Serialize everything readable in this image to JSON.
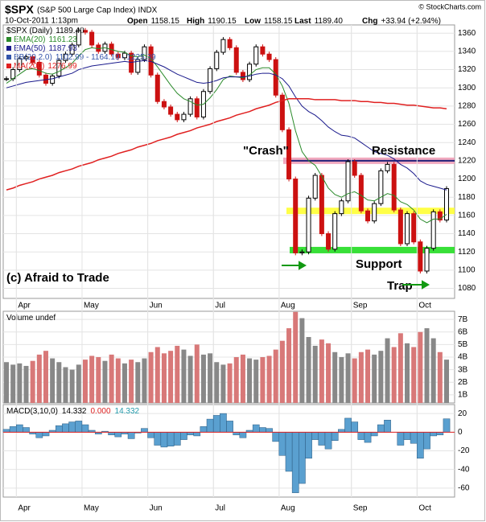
{
  "chart_data": [
    {
      "type": "candlestick",
      "title": "$SPX",
      "subtitle": "(S&P 500 Large Cap Index) INDX",
      "date": "10-Oct-2011 1:13pm",
      "source": "© StockCharts.com",
      "quote": [
        {
          "label": "Open",
          "value": "1158.15"
        },
        {
          "label": "High",
          "value": "1190.15"
        },
        {
          "label": "Low",
          "value": "1158.15"
        },
        {
          "label": "Last",
          "value": "1189.40"
        },
        {
          "label": "Chg",
          "value": "+33.94 (+2.94%)"
        }
      ],
      "annotations": {
        "crash": "\"Crash\"",
        "resistance": "Resistance",
        "support": "Support",
        "trap": "Trap",
        "copyright": "(c) Afraid to Trade"
      },
      "categories": [
        null,
        null,
        "Apr",
        null,
        null,
        null,
        null,
        null,
        null,
        null,
        null,
        null,
        "May",
        null,
        null,
        null,
        null,
        null,
        null,
        null,
        null,
        null,
        "Jun",
        null,
        null,
        null,
        null,
        null,
        null,
        null,
        null,
        null,
        "Jul",
        null,
        null,
        null,
        null,
        null,
        null,
        null,
        null,
        null,
        "Aug",
        null,
        null,
        null,
        null,
        null,
        null,
        null,
        null,
        null,
        null,
        "Sep",
        null,
        null,
        null,
        null,
        null,
        null,
        null,
        null,
        null,
        "Oct",
        null,
        null,
        null,
        null
      ],
      "series": [
        {
          "name": "$SPX (Daily)",
          "last": "1189.40",
          "color": "#000000",
          "down_color": "#cc1111",
          "values": [
            1310,
            1320,
            1332,
            1334,
            1328,
            1314,
            1305,
            1313,
            1330,
            1337,
            1347,
            1363,
            1361,
            1347,
            1340,
            1348,
            1337,
            1333,
            1338,
            1317,
            1331,
            1345,
            1314,
            1285,
            1279,
            1271,
            1265,
            1271,
            1288,
            1268,
            1296,
            1321,
            1339,
            1353,
            1344,
            1317,
            1309,
            1326,
            1345,
            1337,
            1331,
            1292,
            1254,
            1200,
            1119,
            1120,
            1179,
            1204,
            1140,
            1123,
            1162,
            1176,
            1219,
            1204,
            1165,
            1154,
            1173,
            1209,
            1216,
            1166,
            1129,
            1162,
            1131,
            1099,
            1124,
            1164,
            1155,
            1189.4
          ]
        },
        {
          "name": "EMA(20)",
          "last": "1161.23",
          "color": "#2a8a2a",
          "values": [
            1305,
            1310,
            1315,
            1320,
            1321,
            1319,
            1316,
            1315,
            1318,
            1322,
            1327,
            1335,
            1342,
            1344,
            1343,
            1344,
            1342,
            1340,
            1339,
            1335,
            1334,
            1336,
            1332,
            1323,
            1313,
            1303,
            1294,
            1288,
            1285,
            1281,
            1282,
            1289,
            1298,
            1309,
            1313,
            1312,
            1311,
            1314,
            1320,
            1322,
            1322,
            1315,
            1302,
            1283,
            1253,
            1230,
            1220,
            1215,
            1203,
            1190,
            1183,
            1180,
            1184,
            1186,
            1182,
            1177,
            1176,
            1180,
            1184,
            1182,
            1175,
            1172,
            1166,
            1156,
            1152,
            1156,
            1156,
            1161.23
          ]
        },
        {
          "name": "EMA(50)",
          "last": "1187.93",
          "color": "#1a1a8c",
          "values": [
            1300,
            1302,
            1304,
            1306,
            1307,
            1308,
            1309,
            1310,
            1312,
            1314,
            1316,
            1320,
            1322,
            1324,
            1325,
            1326,
            1327,
            1328,
            1329,
            1328,
            1329,
            1330,
            1329,
            1326,
            1323,
            1319,
            1315,
            1312,
            1309,
            1306,
            1305,
            1306,
            1308,
            1311,
            1312,
            1312,
            1312,
            1313,
            1315,
            1316,
            1316,
            1314,
            1310,
            1302,
            1290,
            1280,
            1274,
            1270,
            1264,
            1257,
            1252,
            1248,
            1247,
            1245,
            1240,
            1235,
            1230,
            1228,
            1226,
            1222,
            1216,
            1212,
            1206,
            1198,
            1194,
            1192,
            1190,
            1187.93
          ]
        },
        {
          "name": "MA(200)",
          "last": "1276.99",
          "color": "#e02020",
          "values": [
            1188,
            1190,
            1193,
            1195,
            1197,
            1200,
            1202,
            1204,
            1207,
            1209,
            1211,
            1214,
            1216,
            1218,
            1221,
            1223,
            1225,
            1228,
            1230,
            1232,
            1235,
            1237,
            1239,
            1242,
            1244,
            1246,
            1249,
            1251,
            1253,
            1256,
            1258,
            1260,
            1263,
            1265,
            1267,
            1270,
            1272,
            1274,
            1277,
            1279,
            1281,
            1284,
            1286,
            1288,
            1288,
            1288,
            1288,
            1287,
            1287,
            1287,
            1287,
            1286,
            1286,
            1286,
            1285,
            1285,
            1284,
            1284,
            1283,
            1283,
            1282,
            1281,
            1281,
            1280,
            1279,
            1278,
            1278,
            1277
          ]
        }
      ],
      "legend_extra": {
        "name": "BB(20,2.0)",
        "last": "1102.99 - 1164.19 - 1225.39",
        "color": "#3355aa"
      },
      "levels": [
        {
          "value": 1220,
          "color": "#f0a0b8",
          "line_color": "#22227a"
        },
        {
          "value": 1165,
          "color": "#ffff33"
        },
        {
          "value": 1122,
          "color": "#22dd22"
        }
      ],
      "ylim": [
        1069,
        1369
      ],
      "yticks": [
        1080,
        1100,
        1120,
        1140,
        1160,
        1180,
        1200,
        1220,
        1240,
        1260,
        1280,
        1300,
        1320,
        1340,
        1360
      ],
      "grid": true
    },
    {
      "type": "bar",
      "title": "Volume undef",
      "values": [
        3.6,
        3.4,
        3.5,
        3.3,
        3.7,
        4.2,
        4.5,
        3.9,
        3.6,
        3.2,
        3.0,
        3.4,
        3.8,
        4.1,
        4.0,
        3.7,
        4.2,
        3.9,
        3.5,
        3.8,
        3.6,
        3.9,
        4.4,
        4.8,
        4.3,
        4.5,
        4.9,
        4.6,
        4.1,
        5.0,
        4.2,
        4.3,
        3.6,
        3.4,
        3.5,
        4.0,
        4.2,
        3.9,
        3.8,
        4.0,
        4.1,
        4.6,
        5.3,
        6.3,
        7.6,
        7.1,
        5.6,
        4.9,
        5.4,
        5.1,
        4.4,
        4.0,
        4.3,
        3.9,
        4.4,
        4.6,
        4.2,
        4.5,
        5.5,
        4.8,
        5.9,
        5.1,
        4.8,
        6.0,
        6.3,
        5.5,
        4.4,
        3.8
      ],
      "color": "#888888",
      "down_color": "#d87878",
      "ylim": [
        0.35,
        7.65
      ],
      "yticks": [
        {
          "value": 1,
          "label": "1B"
        },
        {
          "value": 2,
          "label": "2B"
        },
        {
          "value": 3,
          "label": "3B"
        },
        {
          "value": 4,
          "label": "4B"
        },
        {
          "value": 5,
          "label": "5B"
        },
        {
          "value": 6,
          "label": "6B"
        },
        {
          "value": 7,
          "label": "7B"
        }
      ],
      "grid": true
    },
    {
      "type": "bar",
      "title": "MACD(3,10,0)",
      "legend_values": [
        {
          "text": "14.332",
          "color": "#000000"
        },
        {
          "text": "0.000",
          "color": "#dd2222"
        },
        {
          "text": "14.332",
          "color": "#2299aa"
        }
      ],
      "categories": [
        null,
        null,
        "Apr",
        null,
        null,
        null,
        null,
        null,
        null,
        null,
        null,
        null,
        "May",
        null,
        null,
        null,
        null,
        null,
        null,
        null,
        null,
        null,
        "Jun",
        null,
        null,
        null,
        null,
        null,
        null,
        null,
        null,
        null,
        "Jul",
        null,
        null,
        null,
        null,
        null,
        null,
        null,
        null,
        null,
        "Aug",
        null,
        null,
        null,
        null,
        null,
        null,
        null,
        null,
        null,
        null,
        "Sep",
        null,
        null,
        null,
        null,
        null,
        null,
        null,
        null,
        null,
        "Oct",
        null,
        null,
        null,
        null
      ],
      "values": [
        3,
        6,
        8,
        5,
        -2,
        -6,
        -4,
        2,
        7,
        9,
        11,
        12,
        8,
        2,
        -2,
        1,
        -3,
        -5,
        -2,
        -7,
        -1,
        4,
        -6,
        -14,
        -16,
        -15,
        -14,
        -8,
        -3,
        -4,
        6,
        14,
        18,
        20,
        12,
        -3,
        -6,
        2,
        8,
        5,
        4,
        -10,
        -25,
        -42,
        -65,
        -55,
        -28,
        -8,
        -14,
        -18,
        -9,
        3,
        15,
        11,
        -8,
        -11,
        -4,
        8,
        13,
        0,
        -14,
        -8,
        -12,
        -28,
        -18,
        -4,
        -3,
        14.332
      ],
      "color": "#5aa0d0",
      "ylim": [
        -69.6,
        29.6
      ],
      "yticks": [
        -60,
        -40,
        -20,
        0,
        20
      ],
      "grid": true
    }
  ]
}
